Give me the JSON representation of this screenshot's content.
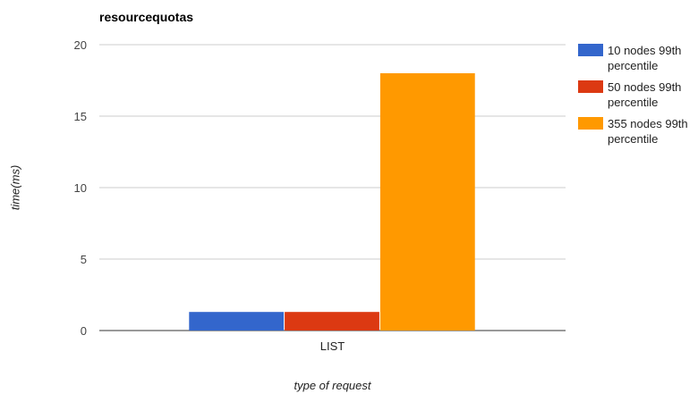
{
  "chart_data": {
    "type": "bar",
    "title": "resourcequotas",
    "xlabel": "type of request",
    "ylabel": "time(ms)",
    "categories": [
      "LIST"
    ],
    "series": [
      {
        "name": "10 nodes 99th percentile",
        "values": [
          1.3
        ],
        "color": "#3366cc"
      },
      {
        "name": "50 nodes 99th percentile",
        "values": [
          1.3
        ],
        "color": "#dc3912"
      },
      {
        "name": "355 nodes 99th percentile",
        "values": [
          18
        ],
        "color": "#ff9900"
      }
    ],
    "ylim": [
      0,
      20
    ],
    "yticks": [
      0,
      5,
      10,
      15,
      20
    ],
    "grid": true,
    "legend_position": "right"
  }
}
